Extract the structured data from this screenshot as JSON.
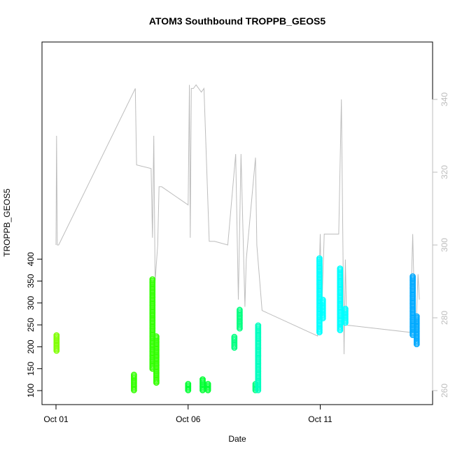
{
  "chart_data": {
    "type": "scatter",
    "title": "ATOM3 Southbound TROPPB_GEOS5",
    "xlabel": "Date",
    "ylabel": "TROPPB_GEOS5",
    "x_ticks": [
      "Oct 01",
      "Oct 06",
      "Oct 11"
    ],
    "x_range_days": [
      0.0,
      13.85
    ],
    "ylim": [
      92,
      420
    ],
    "y_ticks": [
      100,
      150,
      200,
      250,
      300,
      350,
      400
    ],
    "y2lim": [
      257,
      354
    ],
    "y2_ticks": [
      260,
      280,
      300,
      320,
      340
    ],
    "grid": false,
    "colors": {
      "lime": "#80ff00",
      "green_bright": "#33ff00",
      "green": "#00ff33",
      "spring": "#00ff80",
      "aquamarine": "#00ffbf",
      "cyan": "#00ffff",
      "azure": "#00aaff",
      "gray_line": "#bdbdbd",
      "pink": "#ff9999"
    },
    "clusters": [
      {
        "day": 0.02,
        "top": 227,
        "bottom": 191,
        "color": "lime"
      },
      {
        "day": 2.95,
        "top": 137,
        "bottom": 101,
        "color": "green_bright"
      },
      {
        "day": 3.65,
        "top": 357,
        "bottom": 150,
        "color": "green_bright"
      },
      {
        "day": 3.8,
        "top": 225,
        "bottom": 118,
        "color": "green_bright"
      },
      {
        "day": 5.0,
        "top": 118,
        "bottom": 101,
        "color": "green"
      },
      {
        "day": 5.55,
        "top": 127,
        "bottom": 101,
        "color": "green"
      },
      {
        "day": 5.75,
        "top": 118,
        "bottom": 101,
        "color": "green"
      },
      {
        "day": 6.75,
        "top": 226,
        "bottom": 198,
        "color": "spring"
      },
      {
        "day": 6.95,
        "top": 286,
        "bottom": 242,
        "color": "spring"
      },
      {
        "day": 7.55,
        "top": 118,
        "bottom": 101,
        "color": "spring"
      },
      {
        "day": 7.65,
        "top": 252,
        "bottom": 101,
        "color": "aquamarine"
      },
      {
        "day": 9.97,
        "top": 405,
        "bottom": 233,
        "color": "cyan"
      },
      {
        "day": 10.1,
        "top": 310,
        "bottom": 265,
        "color": "cyan"
      },
      {
        "day": 10.75,
        "top": 380,
        "bottom": 238,
        "color": "cyan"
      },
      {
        "day": 10.95,
        "top": 290,
        "bottom": 255,
        "color": "cyan"
      },
      {
        "day": 13.5,
        "top": 364,
        "bottom": 227,
        "color": "azure"
      },
      {
        "day": 13.65,
        "top": 270,
        "bottom": 206,
        "color": "azure"
      }
    ]
  }
}
